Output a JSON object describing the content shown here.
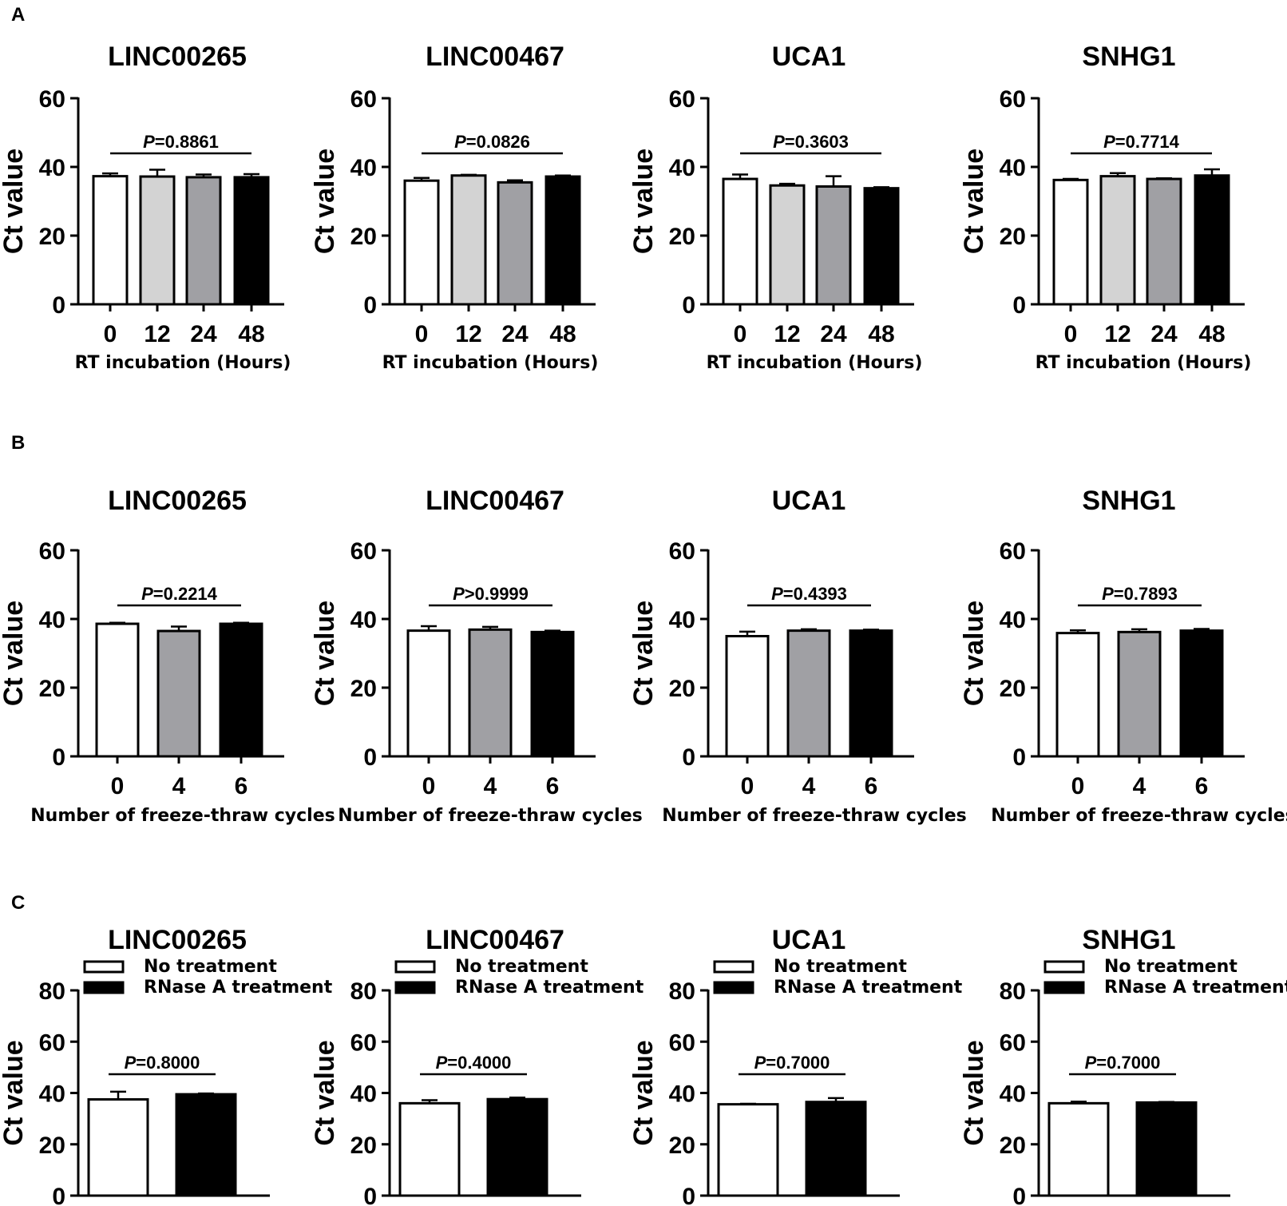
{
  "panel_labels": [
    "A",
    "B",
    "C"
  ],
  "colors": {
    "white": "#ffffff",
    "light_gray": "#d3d3d3",
    "mid_gray": "#a0a0a4",
    "black": "#000000"
  },
  "chart_data": [
    {
      "panel": "A",
      "type": "bar",
      "title": "LINC00265",
      "ylabel": "Ct value",
      "xlabel": "RT incubation (Hours)",
      "categories": [
        "0",
        "12",
        "24",
        "48"
      ],
      "values": [
        37.3,
        37.2,
        37.0,
        37.0
      ],
      "errors": [
        0.8,
        2.0,
        0.8,
        0.9
      ],
      "bar_colors": [
        "white",
        "light_gray",
        "mid_gray",
        "black"
      ],
      "ylim": [
        0,
        60
      ],
      "yticks": [
        "0",
        "20",
        "40",
        "60"
      ],
      "p_label": "P",
      "p_value": "=0.8861"
    },
    {
      "panel": "A",
      "type": "bar",
      "title": "LINC00467",
      "ylabel": "Ct value",
      "xlabel": "RT incubation (Hours)",
      "categories": [
        "0",
        "12",
        "24",
        "48"
      ],
      "values": [
        36.0,
        37.5,
        35.5,
        37.2
      ],
      "errors": [
        0.8,
        0.2,
        0.6,
        0.3
      ],
      "bar_colors": [
        "white",
        "light_gray",
        "mid_gray",
        "black"
      ],
      "ylim": [
        0,
        60
      ],
      "yticks": [
        "0",
        "20",
        "40",
        "60"
      ],
      "p_label": "P",
      "p_value": "=0.0826"
    },
    {
      "panel": "A",
      "type": "bar",
      "title": "UCA1",
      "ylabel": "Ct value",
      "xlabel": "RT incubation (Hours)",
      "categories": [
        "0",
        "12",
        "24",
        "48"
      ],
      "values": [
        36.5,
        34.6,
        34.3,
        33.8
      ],
      "errors": [
        1.3,
        0.5,
        3.0,
        0.3
      ],
      "bar_colors": [
        "white",
        "light_gray",
        "mid_gray",
        "black"
      ],
      "ylim": [
        0,
        60
      ],
      "yticks": [
        "0",
        "20",
        "40",
        "60"
      ],
      "p_label": "P",
      "p_value": "=0.3603"
    },
    {
      "panel": "A",
      "type": "bar",
      "title": "SNHG1",
      "ylabel": "Ct value",
      "xlabel": "RT incubation (Hours)",
      "categories": [
        "0",
        "12",
        "24",
        "48"
      ],
      "values": [
        36.2,
        37.3,
        36.5,
        37.5
      ],
      "errors": [
        0.3,
        0.9,
        0.2,
        1.8
      ],
      "bar_colors": [
        "white",
        "light_gray",
        "mid_gray",
        "black"
      ],
      "ylim": [
        0,
        60
      ],
      "yticks": [
        "0",
        "20",
        "40",
        "60"
      ],
      "p_label": "P",
      "p_value": "=0.7714"
    },
    {
      "panel": "B",
      "type": "bar",
      "title": "LINC00265",
      "ylabel": "Ct value",
      "xlabel": "Number of freeze-thraw cycles",
      "categories": [
        "0",
        "4",
        "6"
      ],
      "values": [
        38.6,
        36.5,
        38.6
      ],
      "errors": [
        0.3,
        1.3,
        0.3
      ],
      "bar_colors": [
        "white",
        "mid_gray",
        "black"
      ],
      "ylim": [
        0,
        60
      ],
      "yticks": [
        "0",
        "20",
        "40",
        "60"
      ],
      "p_label": "P",
      "p_value": "=0.2214"
    },
    {
      "panel": "B",
      "type": "bar",
      "title": "LINC00467",
      "ylabel": "Ct value",
      "xlabel": "Number of freeze-thraw cycles",
      "categories": [
        "0",
        "4",
        "6"
      ],
      "values": [
        36.6,
        36.9,
        36.2
      ],
      "errors": [
        1.3,
        0.8,
        0.4
      ],
      "bar_colors": [
        "white",
        "mid_gray",
        "black"
      ],
      "ylim": [
        0,
        60
      ],
      "yticks": [
        "0",
        "20",
        "40",
        "60"
      ],
      "p_label": "P",
      "p_value": ">0.9999"
    },
    {
      "panel": "B",
      "type": "bar",
      "title": "UCA1",
      "ylabel": "Ct value",
      "xlabel": "Number of freeze-thraw cycles",
      "categories": [
        "0",
        "4",
        "6"
      ],
      "values": [
        35.0,
        36.6,
        36.6
      ],
      "errors": [
        1.3,
        0.4,
        0.3
      ],
      "bar_colors": [
        "white",
        "mid_gray",
        "black"
      ],
      "ylim": [
        0,
        60
      ],
      "yticks": [
        "0",
        "20",
        "40",
        "60"
      ],
      "p_label": "P",
      "p_value": "=0.4393"
    },
    {
      "panel": "B",
      "type": "bar",
      "title": "SNHG1",
      "ylabel": "Ct value",
      "xlabel": "Number of freeze-thraw cycles",
      "categories": [
        "0",
        "4",
        "6"
      ],
      "values": [
        35.9,
        36.2,
        36.6
      ],
      "errors": [
        0.8,
        0.8,
        0.5
      ],
      "bar_colors": [
        "white",
        "mid_gray",
        "black"
      ],
      "ylim": [
        0,
        60
      ],
      "yticks": [
        "0",
        "20",
        "40",
        "60"
      ],
      "p_label": "P",
      "p_value": "=0.7893"
    },
    {
      "panel": "C",
      "type": "bar",
      "title": "LINC00265",
      "ylabel": "Ct value",
      "xlabel": "",
      "categories": [
        "No treatment",
        "RNase A treatment"
      ],
      "values": [
        37.5,
        39.5
      ],
      "errors": [
        3.0,
        0.3
      ],
      "bar_colors": [
        "white",
        "black"
      ],
      "legend": [
        "No treatment",
        "RNase A treatment"
      ],
      "ylim": [
        0,
        80
      ],
      "yticks": [
        "0",
        "20",
        "40",
        "60",
        "80"
      ],
      "p_label": "P",
      "p_value": "=0.8000"
    },
    {
      "panel": "C",
      "type": "bar",
      "title": "LINC00467",
      "ylabel": "Ct value",
      "xlabel": "",
      "categories": [
        "No treatment",
        "RNase A treatment"
      ],
      "values": [
        36.0,
        37.6
      ],
      "errors": [
        1.2,
        0.6
      ],
      "bar_colors": [
        "white",
        "black"
      ],
      "legend": [
        "No treatment",
        "RNase A treatment"
      ],
      "ylim": [
        0,
        80
      ],
      "yticks": [
        "0",
        "20",
        "40",
        "60",
        "80"
      ],
      "p_label": "P",
      "p_value": "=0.4000"
    },
    {
      "panel": "C",
      "type": "bar",
      "title": "UCA1",
      "ylabel": "Ct value",
      "xlabel": "",
      "categories": [
        "No treatment",
        "RNase A treatment"
      ],
      "values": [
        35.6,
        36.5
      ],
      "errors": [
        0.2,
        1.5
      ],
      "bar_colors": [
        "white",
        "black"
      ],
      "legend": [
        "No treatment",
        "RNase A treatment"
      ],
      "ylim": [
        0,
        80
      ],
      "yticks": [
        "0",
        "20",
        "40",
        "60",
        "80"
      ],
      "p_label": "P",
      "p_value": "=0.7000"
    },
    {
      "panel": "C",
      "type": "bar",
      "title": "SNHG1",
      "ylabel": "Ct value",
      "xlabel": "",
      "categories": [
        "No treatment",
        "RNase A treatment"
      ],
      "values": [
        36.0,
        36.3
      ],
      "errors": [
        0.6,
        0.2
      ],
      "bar_colors": [
        "white",
        "black"
      ],
      "legend": [
        "No treatment",
        "RNase A treatment"
      ],
      "ylim": [
        0,
        80
      ],
      "yticks": [
        "0",
        "20",
        "40",
        "60",
        "80"
      ],
      "p_label": "P",
      "p_value": "=0.7000"
    }
  ]
}
